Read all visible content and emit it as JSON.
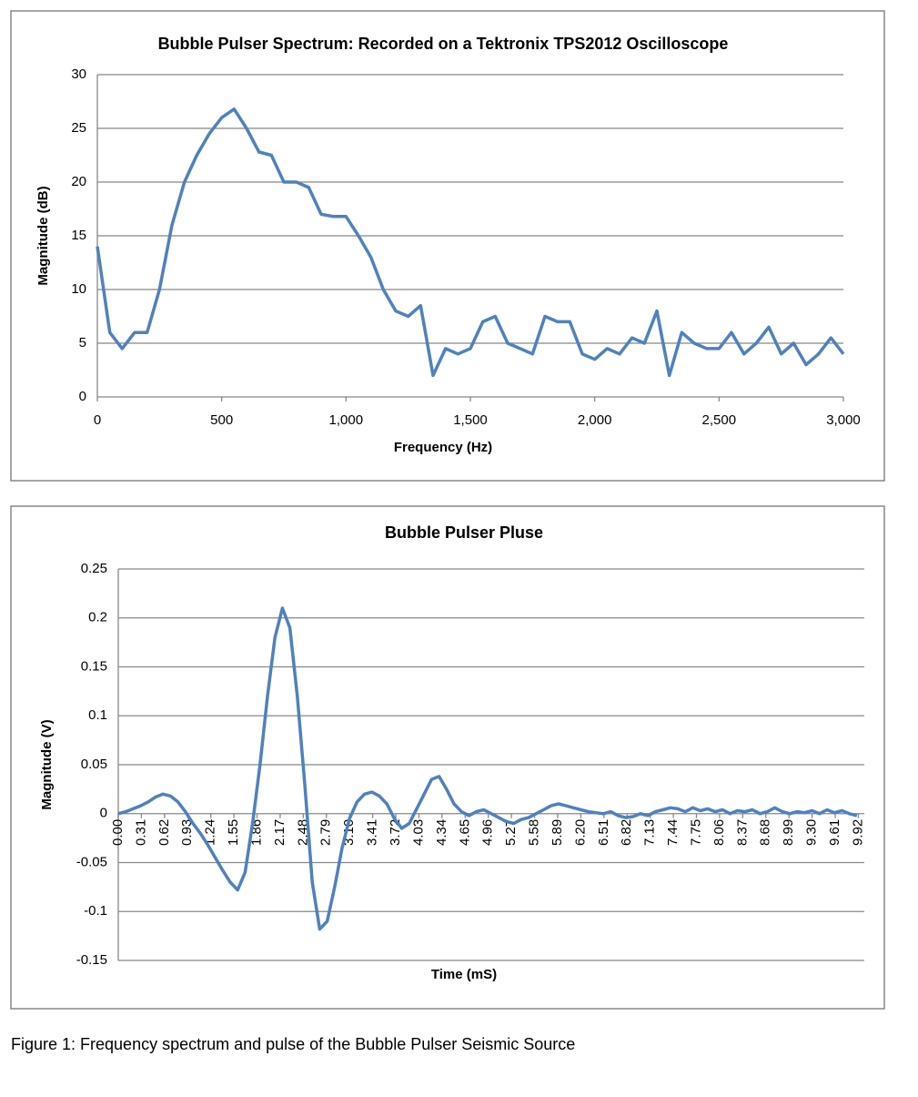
{
  "chart_data": [
    {
      "type": "line",
      "title": "Bubble Pulser Spectrum: Recorded on a Tektronix TPS2012 Oscilloscope",
      "xlabel": "Frequency (Hz)",
      "ylabel": "Magnitude (dB)",
      "x": [
        0,
        50,
        100,
        150,
        200,
        250,
        300,
        350,
        400,
        450,
        500,
        550,
        600,
        650,
        700,
        750,
        800,
        850,
        900,
        950,
        1000,
        1050,
        1100,
        1150,
        1200,
        1250,
        1300,
        1350,
        1400,
        1450,
        1500,
        1550,
        1600,
        1650,
        1700,
        1750,
        1800,
        1850,
        1900,
        1950,
        2000,
        2050,
        2100,
        2150,
        2200,
        2250,
        2300,
        2350,
        2400,
        2450,
        2500,
        2550,
        2600,
        2650,
        2700,
        2750,
        2800,
        2850,
        2900,
        2950,
        3000
      ],
      "series": [
        {
          "name": "Magnitude",
          "color": "#4f81bd",
          "values": [
            14,
            6,
            4.5,
            6,
            6,
            10,
            16,
            20,
            22.5,
            24.5,
            26,
            26.8,
            25,
            22.8,
            22.5,
            20,
            20,
            19.5,
            17,
            16.8,
            16.8,
            15,
            13,
            10,
            8,
            7.5,
            8.5,
            2,
            4.5,
            4,
            4.5,
            7,
            7.5,
            5,
            4.5,
            4,
            7.5,
            7,
            7,
            4,
            3.5,
            4.5,
            4,
            5.5,
            5,
            8,
            2,
            6,
            5,
            4.5,
            4.5,
            6,
            4,
            5,
            6.5,
            4,
            5,
            3,
            4,
            5.5,
            4
          ]
        }
      ],
      "xlim": [
        0,
        3000
      ],
      "xticks": [
        0,
        500,
        {
          "value": 1000,
          "label": "1,000"
        },
        {
          "value": 1500,
          "label": "1,500"
        },
        {
          "value": 2000,
          "label": "2,000"
        },
        {
          "value": 2500,
          "label": "2,500"
        },
        {
          "value": 3000,
          "label": "3,000"
        }
      ],
      "ylim": [
        0,
        30
      ],
      "yticks": [
        0,
        5,
        10,
        15,
        20,
        25,
        30
      ],
      "grid": true
    },
    {
      "type": "line",
      "title": "Bubble Pulser Pluse",
      "xlabel": "Time (mS)",
      "ylabel": "Magnitude  (V)",
      "x": [
        0,
        0.1,
        0.2,
        0.3,
        0.4,
        0.5,
        0.6,
        0.7,
        0.8,
        0.9,
        1,
        1.1,
        1.2,
        1.3,
        1.4,
        1.5,
        1.6,
        1.7,
        1.8,
        1.9,
        2,
        2.1,
        2.2,
        2.3,
        2.4,
        2.5,
        2.6,
        2.7,
        2.8,
        2.9,
        3,
        3.1,
        3.2,
        3.3,
        3.4,
        3.5,
        3.6,
        3.7,
        3.8,
        3.9,
        4,
        4.1,
        4.2,
        4.3,
        4.4,
        4.5,
        4.6,
        4.7,
        4.8,
        4.9,
        5,
        5.1,
        5.2,
        5.3,
        5.4,
        5.5,
        5.6,
        5.7,
        5.8,
        5.9,
        6,
        6.1,
        6.2,
        6.3,
        6.4,
        6.5,
        6.6,
        6.7,
        6.8,
        6.9,
        7,
        7.1,
        7.2,
        7.3,
        7.4,
        7.5,
        7.6,
        7.7,
        7.8,
        7.9,
        8,
        8.1,
        8.2,
        8.3,
        8.4,
        8.5,
        8.6,
        8.7,
        8.8,
        8.9,
        9,
        9.1,
        9.2,
        9.3,
        9.4,
        9.5,
        9.6,
        9.7,
        9.8,
        9.9
      ],
      "series": [
        {
          "name": "Magnitude",
          "color": "#4f81bd",
          "values": [
            0,
            0.002,
            0.005,
            0.008,
            0.012,
            0.017,
            0.02,
            0.018,
            0.012,
            0.002,
            -0.01,
            -0.02,
            -0.032,
            -0.045,
            -0.058,
            -0.07,
            -0.078,
            -0.06,
            -0.01,
            0.05,
            0.12,
            0.18,
            0.21,
            0.19,
            0.12,
            0.03,
            -0.07,
            -0.118,
            -0.11,
            -0.075,
            -0.035,
            -0.005,
            0.012,
            0.02,
            0.022,
            0.018,
            0.01,
            -0.005,
            -0.015,
            -0.01,
            0.005,
            0.02,
            0.035,
            0.038,
            0.025,
            0.01,
            0.002,
            -0.002,
            0.002,
            0.004,
            0,
            -0.004,
            -0.008,
            -0.01,
            -0.006,
            -0.004,
            0,
            0.004,
            0.008,
            0.01,
            0.008,
            0.006,
            0.004,
            0.002,
            0.001,
            0,
            0.002,
            -0.002,
            -0.004,
            -0.003,
            0,
            -0.002,
            0.002,
            0.004,
            0.006,
            0.005,
            0.002,
            0.006,
            0.003,
            0.005,
            0.002,
            0.004,
            0,
            0.003,
            0.002,
            0.004,
            0,
            0.002,
            0.006,
            0.002,
            0,
            0.002,
            0.001,
            0.003,
            0,
            0.004,
            0.001,
            0.003,
            0,
            -0.002
          ]
        }
      ],
      "xlim": [
        0,
        10
      ],
      "xticks": [
        {
          "value": 0,
          "label": "0.00"
        },
        0.31,
        0.62,
        0.93,
        1.24,
        1.55,
        1.86,
        2.17,
        2.48,
        2.79,
        {
          "value": 3.1,
          "label": "3.10"
        },
        3.41,
        3.72,
        4.03,
        4.34,
        4.65,
        4.96,
        5.27,
        5.58,
        5.89,
        {
          "value": 6.2,
          "label": "6.20"
        },
        6.51,
        6.82,
        7.13,
        7.44,
        7.75,
        8.06,
        8.37,
        8.68,
        8.99,
        {
          "value": 9.3,
          "label": "9.30"
        },
        9.61,
        9.92
      ],
      "ylim": [
        -0.15,
        0.25
      ],
      "yticks": [
        -0.15,
        -0.1,
        -0.05,
        0,
        0.05,
        0.1,
        0.15,
        0.2,
        0.25
      ],
      "grid": true
    }
  ],
  "caption": "Figure 1: Frequency spectrum and pulse of the Bubble Pulser Seismic Source"
}
